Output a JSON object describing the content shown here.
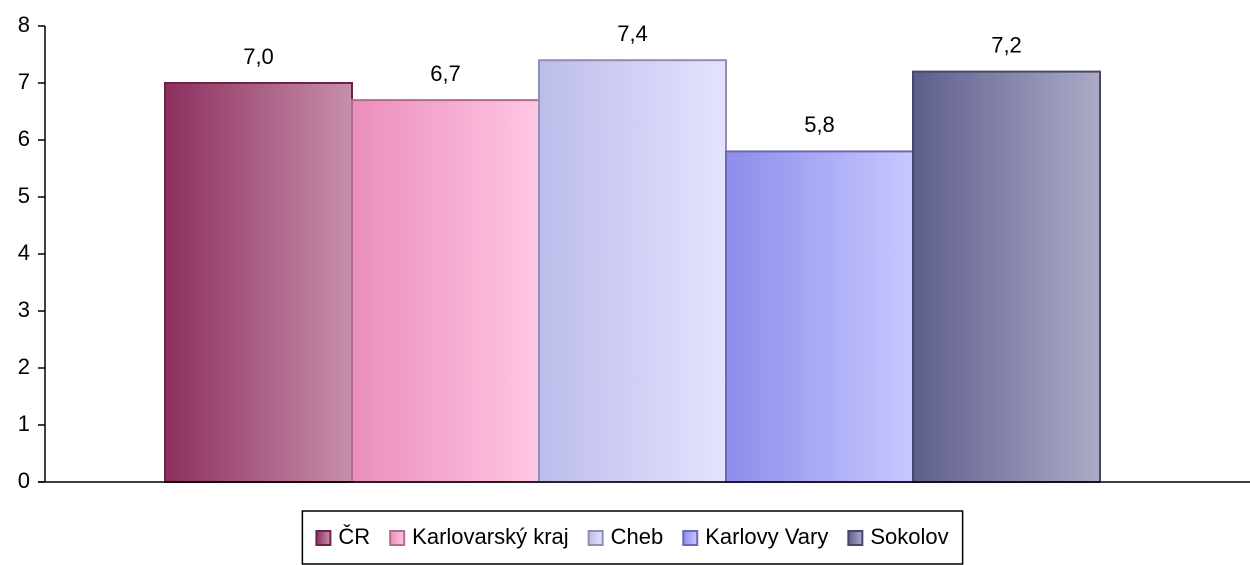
{
  "chart_data": {
    "type": "bar",
    "categories": [
      null
    ],
    "series": [
      {
        "name": "ČR",
        "color": "#993366",
        "values": [
          7.0
        ],
        "value_labels": [
          "7,0"
        ]
      },
      {
        "name": "Karlovarský kraj",
        "color": "#ff99cc",
        "values": [
          6.7
        ],
        "value_labels": [
          "6,7"
        ]
      },
      {
        "name": "Cheb",
        "color": "#ccccff",
        "values": [
          7.4
        ],
        "value_labels": [
          "7,4"
        ]
      },
      {
        "name": "Karlovy Vary",
        "color": "#9999ff",
        "values": [
          5.8
        ],
        "value_labels": [
          "5,8"
        ]
      },
      {
        "name": "Sokolov",
        "color": "#666699",
        "values": [
          7.2
        ],
        "value_labels": [
          "7,2"
        ]
      }
    ],
    "ylim": [
      0,
      8
    ],
    "yticks": [
      0,
      1,
      2,
      3,
      4,
      5,
      6,
      7,
      8
    ],
    "grid": false,
    "legend": "bottom"
  }
}
